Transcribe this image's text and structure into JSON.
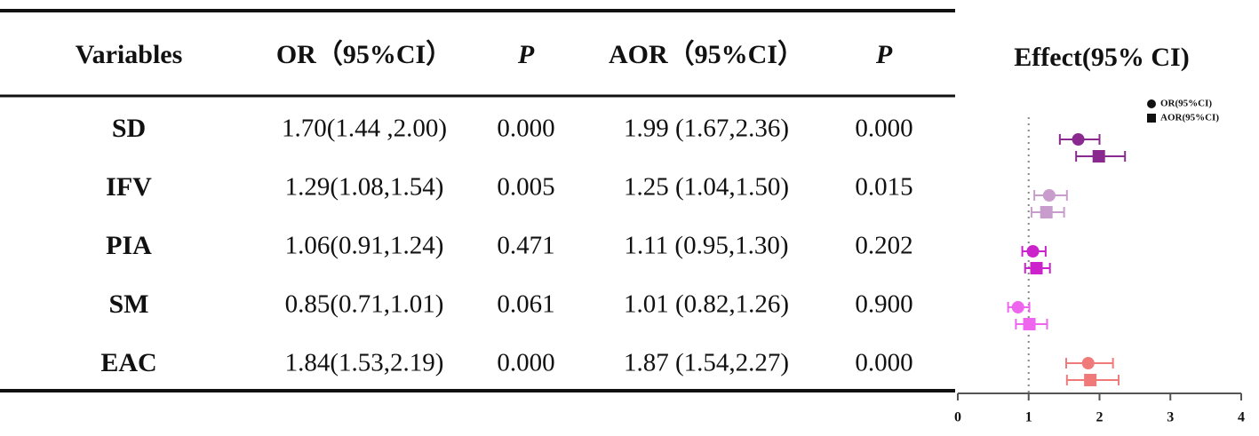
{
  "table": {
    "header": [
      "Variables",
      "OR（95%CI）",
      "P",
      "AOR（95%CI）",
      "P"
    ],
    "rows": [
      [
        "SD",
        "1.70(1.44 ,2.00)",
        "0.000",
        "1.99 (1.67,2.36)",
        "0.000"
      ],
      [
        "IFV",
        "1.29(1.08,1.54)",
        "0.005",
        "1.25 (1.04,1.50)",
        "0.015"
      ],
      [
        "PIA",
        "1.06(0.91,1.24)",
        "0.471",
        "1.11 (0.95,1.30)",
        "0.202"
      ],
      [
        "SM",
        "0.85(0.71,1.01)",
        "0.061",
        "1.01 (0.82,1.26)",
        "0.900"
      ],
      [
        "EAC",
        "1.84(1.53,2.19)",
        "0.000",
        "1.87 (1.54,2.27)",
        "0.000"
      ]
    ]
  },
  "chart_data": {
    "type": "forest",
    "title": "Effect(95% CI)",
    "xlim": [
      0,
      4
    ],
    "xticks": [
      0,
      1,
      2,
      3,
      4
    ],
    "ref_line": 1,
    "colors": [
      "#8a2a8e",
      "#c89ccc",
      "#cc22cc",
      "#ee66ee",
      "#f07a7a"
    ],
    "series": [
      {
        "name": "OR(95%CI)",
        "marker": "circle",
        "values": [
          1.7,
          1.29,
          1.06,
          0.85,
          1.84
        ],
        "lower": [
          1.44,
          1.08,
          0.91,
          0.71,
          1.53
        ],
        "upper": [
          2.0,
          1.54,
          1.24,
          1.01,
          2.19
        ]
      },
      {
        "name": "AOR(95%CI)",
        "marker": "square",
        "values": [
          1.99,
          1.25,
          1.11,
          1.01,
          1.87
        ],
        "lower": [
          1.67,
          1.04,
          0.95,
          0.82,
          1.54
        ],
        "upper": [
          2.36,
          1.5,
          1.3,
          1.26,
          2.27
        ]
      }
    ]
  }
}
